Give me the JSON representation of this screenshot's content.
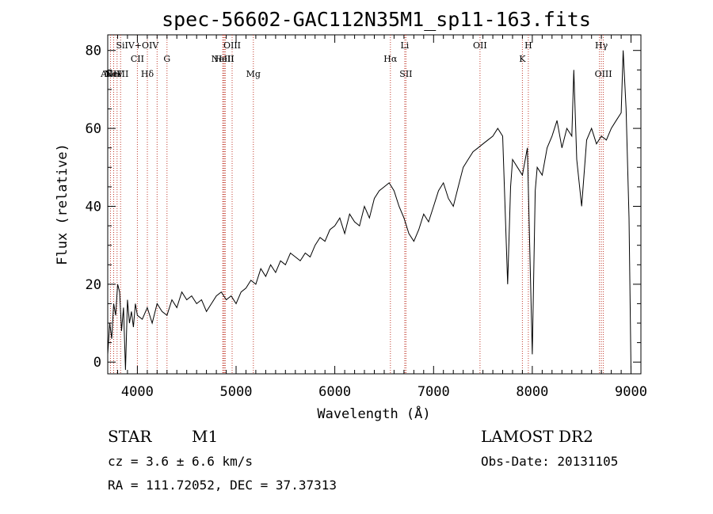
{
  "chart_data": {
    "type": "line",
    "title": "spec-56602-GAC112N35M1_sp11-163.fits",
    "xlabel": "Wavelength (Å)",
    "ylabel": "Flux (relative)",
    "xlim": [
      3700,
      9100
    ],
    "ylim": [
      -3,
      84
    ],
    "xticks": [
      4000,
      5000,
      6000,
      7000,
      8000,
      9000
    ],
    "yticks": [
      0,
      20,
      40,
      60,
      80
    ],
    "grid": false,
    "legend": "none",
    "series": [
      {
        "x": [
          3700,
          3720,
          3740,
          3760,
          3780,
          3800,
          3820,
          3840,
          3860,
          3880,
          3900,
          3920,
          3940,
          3960,
          3980,
          4000,
          4050,
          4100,
          4150,
          4200,
          4250,
          4300,
          4350,
          4400,
          4450,
          4500,
          4550,
          4600,
          4650,
          4700,
          4750,
          4800,
          4850,
          4900,
          4950,
          5000,
          5050,
          5100,
          5150,
          5200,
          5250,
          5300,
          5350,
          5400,
          5450,
          5500,
          5550,
          5600,
          5650,
          5700,
          5750,
          5800,
          5850,
          5900,
          5950,
          6000,
          6050,
          6100,
          6150,
          6200,
          6250,
          6300,
          6350,
          6400,
          6450,
          6500,
          6550,
          6600,
          6650,
          6700,
          6750,
          6800,
          6850,
          6900,
          6950,
          7000,
          7050,
          7100,
          7150,
          7200,
          7250,
          7300,
          7350,
          7400,
          7450,
          7500,
          7550,
          7600,
          7650,
          7700,
          7750,
          7780,
          7800,
          7850,
          7900,
          7950,
          8000,
          8030,
          8050,
          8100,
          8150,
          8200,
          8250,
          8300,
          8350,
          8400,
          8420,
          8450,
          8500,
          8550,
          8600,
          8650,
          8700,
          8750,
          8800,
          8850,
          8900,
          8920,
          8950,
          8980,
          9000
        ],
        "y": [
          2,
          10,
          6,
          15,
          12,
          20,
          18,
          8,
          14,
          -2,
          16,
          10,
          13,
          9,
          15,
          12,
          11,
          14,
          10,
          15,
          13,
          12,
          16,
          14,
          18,
          16,
          17,
          15,
          16,
          13,
          15,
          17,
          18,
          16,
          17,
          15,
          18,
          19,
          21,
          20,
          24,
          22,
          25,
          23,
          26,
          25,
          28,
          27,
          26,
          28,
          27,
          30,
          32,
          31,
          34,
          35,
          37,
          33,
          38,
          36,
          35,
          40,
          37,
          42,
          44,
          45,
          46,
          44,
          40,
          37,
          33,
          31,
          34,
          38,
          36,
          40,
          44,
          46,
          42,
          40,
          45,
          50,
          52,
          54,
          55,
          56,
          57,
          58,
          60,
          58,
          20,
          45,
          52,
          50,
          48,
          55,
          2,
          44,
          50,
          48,
          55,
          58,
          62,
          55,
          60,
          58,
          75,
          52,
          40,
          57,
          60,
          56,
          58,
          57,
          60,
          62,
          64,
          80,
          65,
          37,
          -2
        ]
      }
    ],
    "spectral_lines": [
      {
        "label": "AlIII",
        "wavelength": 3727,
        "row": 3
      },
      {
        "label": "NeV",
        "wavelength": 3760,
        "row": 3
      },
      {
        "label": "NeIII",
        "wavelength": 3795,
        "row": 3
      },
      {
        "label": "SiIV+OIV",
        "wavelength": 4000,
        "row": 1
      },
      {
        "label": "CII",
        "wavelength": 4000,
        "row": 2
      },
      {
        "label": "Hδ",
        "wavelength": 4101,
        "row": 3
      },
      {
        "label": "G",
        "wavelength": 4300,
        "row": 2
      },
      {
        "label": "OIII",
        "wavelength": 4960,
        "row": 1
      },
      {
        "label": "NeIII",
        "wavelength": 4865,
        "row": 2
      },
      {
        "label": "HeII",
        "wavelength": 4880,
        "row": 2
      },
      {
        "label": "Mg",
        "wavelength": 5175,
        "row": 3
      },
      {
        "label": "Hα",
        "wavelength": 6563,
        "row": 2
      },
      {
        "label": "Li",
        "wavelength": 6708,
        "row": 1
      },
      {
        "label": "SII",
        "wavelength": 6720,
        "row": 3
      },
      {
        "label": "OII",
        "wavelength": 7470,
        "row": 1
      },
      {
        "label": "K",
        "wavelength": 7900,
        "row": 2
      },
      {
        "label": "H",
        "wavelength": 7960,
        "row": 1
      },
      {
        "label": "Hγ",
        "wavelength": 8700,
        "row": 1
      },
      {
        "label": "OIII",
        "wavelength": 8720,
        "row": 3
      }
    ],
    "line_wavelengths_extra": [
      3830,
      4200,
      4870,
      4890,
      6720,
      8680
    ],
    "colors": {
      "spectrum": "#000000",
      "lines": "#c0392b",
      "axes": "#000000"
    }
  },
  "info": {
    "object_class": "STAR",
    "subclass": "M1",
    "survey": "LAMOST DR2",
    "redshift_text": "cz = 3.6 ± 6.6 km/s",
    "obs_date_text": "Obs-Date: 20131105",
    "coords_text": "RA = 111.72052, DEC =  37.37313"
  }
}
